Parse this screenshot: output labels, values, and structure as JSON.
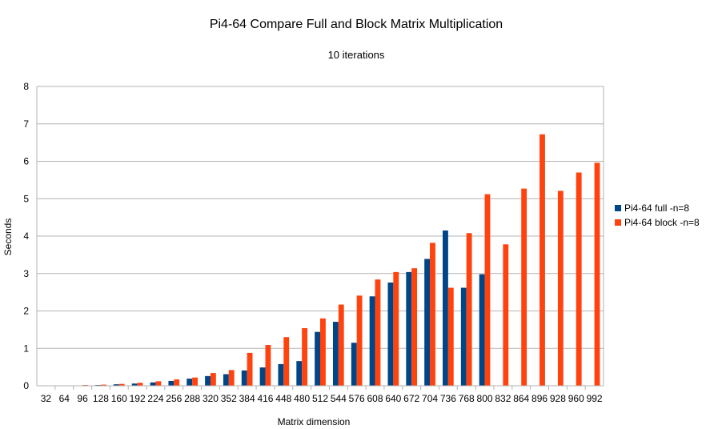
{
  "chart_data": {
    "type": "bar",
    "title": "Pi4-64 Compare Full and Block Matrix Multiplication",
    "subtitle": "10 iterations",
    "xlabel": "Matrix dimension",
    "ylabel": "Seconds",
    "ylim": [
      0,
      8
    ],
    "yticks": [
      0,
      1,
      2,
      3,
      4,
      5,
      6,
      7,
      8
    ],
    "grid": true,
    "legend_position": "right",
    "categories": [
      "32",
      "64",
      "96",
      "128",
      "160",
      "192",
      "224",
      "256",
      "288",
      "320",
      "352",
      "384",
      "416",
      "448",
      "480",
      "512",
      "544",
      "576",
      "608",
      "640",
      "672",
      "704",
      "736",
      "768",
      "800",
      "832",
      "864",
      "896",
      "928",
      "960",
      "992"
    ],
    "series": [
      {
        "name": "Pi4-64 full -n=8",
        "color": "#004586",
        "values": [
          0.0,
          0.0,
          0.01,
          0.02,
          0.04,
          0.06,
          0.09,
          0.13,
          0.19,
          0.26,
          0.31,
          0.41,
          0.49,
          0.58,
          0.66,
          1.44,
          1.71,
          1.15,
          2.39,
          2.76,
          3.04,
          3.39,
          4.15,
          2.62,
          2.98,
          null,
          null,
          null,
          null,
          null,
          null
        ]
      },
      {
        "name": "Pi4-64 block -n=8",
        "color": "#ff420e",
        "values": [
          0.0,
          0.0,
          0.02,
          0.03,
          0.05,
          0.08,
          0.12,
          0.17,
          0.22,
          0.34,
          0.42,
          0.88,
          1.09,
          1.3,
          1.54,
          1.8,
          2.17,
          2.41,
          2.84,
          3.04,
          3.14,
          3.82,
          2.62,
          4.08,
          5.12,
          3.78,
          5.27,
          6.72,
          5.21,
          5.7,
          5.96
        ]
      }
    ]
  }
}
